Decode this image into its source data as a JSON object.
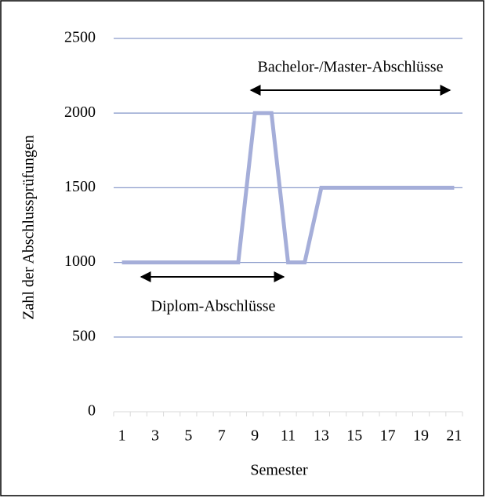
{
  "chart_data": {
    "type": "line",
    "x_label": "Semester",
    "y_label": "Zahl der Abschlussprüfungen",
    "categories": [
      "1",
      null,
      "3",
      null,
      "5",
      null,
      "7",
      null,
      "9",
      null,
      "11",
      null,
      "13",
      null,
      "15",
      null,
      "17",
      null,
      "19",
      null,
      "21"
    ],
    "series": [
      {
        "name": "Abschlussprüfungen",
        "color": "#a5aed9",
        "values": [
          1000,
          1000,
          1000,
          1000,
          1000,
          1000,
          1000,
          1000,
          2000,
          2000,
          1000,
          1000,
          1500,
          1500,
          1500,
          1500,
          1500,
          1500,
          1500,
          1500,
          1500
        ]
      }
    ],
    "ylim": [
      0,
      2500
    ],
    "yticks": [
      0,
      500,
      1000,
      1500,
      2000,
      2500
    ],
    "grid": true,
    "grid_color": "#8a9bcb",
    "annotations": [
      "Bachelor-/Master-Abschlüsse",
      "Diplom-Abschlüsse"
    ]
  }
}
